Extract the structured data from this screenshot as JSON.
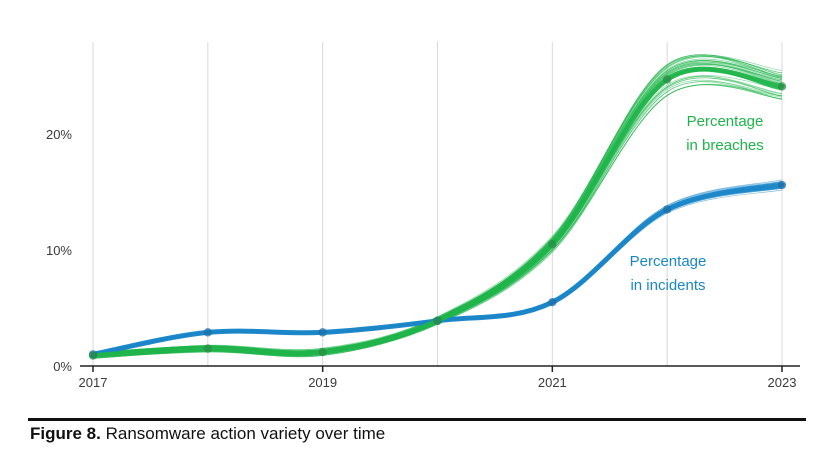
{
  "chart_data": {
    "type": "line",
    "x": [
      2017,
      2018,
      2019,
      2020,
      2021,
      2022,
      2023
    ],
    "xticks": [
      "2017",
      "2019",
      "2021",
      "2023"
    ],
    "yticks": [
      "0%",
      "10%",
      "20%"
    ],
    "ylim": [
      0,
      27
    ],
    "grid": "vertical",
    "series": [
      {
        "name_lines": [
          "Percentage",
          "in incidents"
        ],
        "color": "#1a86c8",
        "values": [
          1.0,
          2.9,
          2.9,
          3.9,
          5.5,
          13.5,
          15.6
        ]
      },
      {
        "name_lines": [
          "Percentage",
          "in breaches"
        ],
        "color": "#1fb44a",
        "values": [
          0.9,
          1.5,
          1.2,
          3.9,
          10.5,
          24.7,
          24.1
        ]
      }
    ]
  },
  "caption": {
    "label": "Figure 8.",
    "text": " Ransomware action variety over time"
  }
}
